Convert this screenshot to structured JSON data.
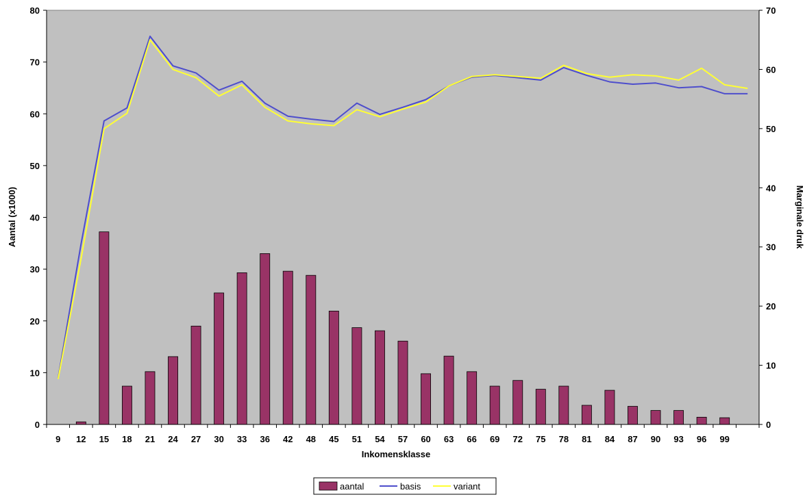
{
  "chart_data": {
    "type": "bar",
    "categories": [
      "9",
      "12",
      "15",
      "18",
      "21",
      "24",
      "27",
      "30",
      "33",
      "36",
      "42",
      "48",
      "45",
      "51",
      "54",
      "57",
      "60",
      "63",
      "66",
      "69",
      "72",
      "75",
      "78",
      "81",
      "84",
      "87",
      "90",
      "93",
      "96",
      "99"
    ],
    "x_extra_slot": true,
    "bar_series": {
      "name": "aantal",
      "color": "#993366",
      "axis": "left",
      "values": [
        null,
        0.5,
        37.2,
        7.4,
        10.2,
        13.1,
        19.0,
        25.4,
        29.3,
        33.0,
        29.6,
        28.8,
        21.9,
        18.7,
        18.1,
        16.1,
        9.8,
        13.2,
        10.2,
        7.4,
        8.5,
        6.8,
        7.4,
        3.7,
        6.6,
        3.5,
        2.7,
        2.7,
        1.4,
        1.3,
        null
      ]
    },
    "line_series": [
      {
        "name": "basis",
        "color": "#4d4dcc",
        "axis": "right",
        "values": [
          7.8,
          30.5,
          51.3,
          53.5,
          65.6,
          60.6,
          59.4,
          56.5,
          58.0,
          54.3,
          52.1,
          51.6,
          51.2,
          54.3,
          52.4,
          53.6,
          54.9,
          57.2,
          58.7,
          59.0,
          58.6,
          58.2,
          60.3,
          59.0,
          57.9,
          57.5,
          57.7,
          56.9,
          57.1,
          55.9,
          55.9
        ]
      },
      {
        "name": "variant",
        "color": "#ffff33",
        "axis": "right",
        "values": [
          7.7,
          28.0,
          50.0,
          52.6,
          65.0,
          60.0,
          58.6,
          55.5,
          57.4,
          53.6,
          51.3,
          50.8,
          50.5,
          53.2,
          52.0,
          53.3,
          54.5,
          57.2,
          58.8,
          59.1,
          58.8,
          58.5,
          60.7,
          59.3,
          58.7,
          59.1,
          58.9,
          58.2,
          60.2,
          57.4,
          56.8
        ]
      }
    ],
    "left_axis": {
      "label": "Aantal (x1000)",
      "min": 0,
      "max": 80,
      "ticks": [
        "0",
        "10",
        "20",
        "30",
        "40",
        "50",
        "60",
        "70",
        "80"
      ]
    },
    "right_axis": {
      "label": "Marginale druk",
      "min": 0,
      "max": 70,
      "ticks": [
        "0",
        "10",
        "20",
        "30",
        "40",
        "50",
        "60",
        "70"
      ]
    },
    "x_axis": {
      "label": "Inkomensklasse"
    },
    "legend": {
      "placement": "bottom",
      "entries": [
        "aantal",
        "basis",
        "variant"
      ]
    },
    "plot_background": "#c0c0c0",
    "grid": false
  }
}
